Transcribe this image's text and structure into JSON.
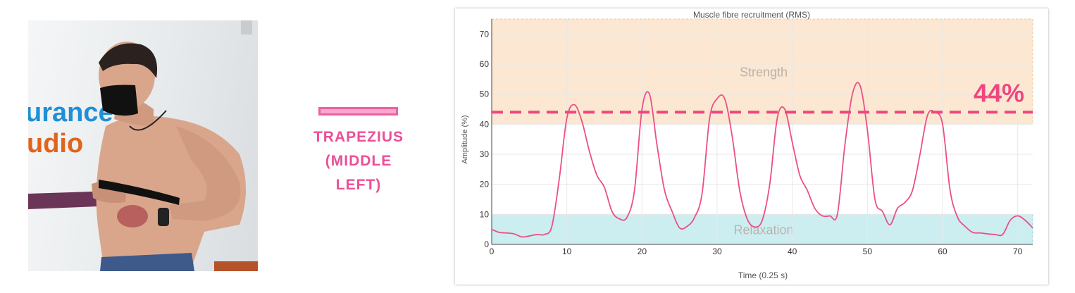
{
  "photo": {
    "logo_line1": "urance",
    "logo_line2": "udio"
  },
  "muscle": {
    "line1": "TRAPEZIUS",
    "line2": "(MIDDLE",
    "line3": "LEFT)"
  },
  "chart_data": {
    "type": "line",
    "title": "Muscle fibre recruitment (RMS)",
    "xlabel": "Time (0.25 s)",
    "ylabel": "Amplitude (%)",
    "xlim": [
      0,
      72
    ],
    "ylim": [
      0,
      75
    ],
    "xticks": [
      0,
      10,
      20,
      30,
      40,
      50,
      60,
      70
    ],
    "yticks": [
      0,
      10,
      20,
      30,
      40,
      50,
      60,
      70
    ],
    "grid": true,
    "bands": [
      {
        "label": "Strength",
        "from": 40,
        "to": 75,
        "color": "#fbe7d2"
      },
      {
        "label": "Relaxation",
        "from": 0,
        "to": 10,
        "color": "#cdeef0"
      }
    ],
    "threshold": {
      "value": 44,
      "label": "44%",
      "color": "#f0457f"
    },
    "series": [
      {
        "color": "#ec4f86",
        "x": [
          0,
          1,
          2,
          3,
          4,
          5,
          6,
          7,
          8,
          9,
          10,
          11,
          12,
          13,
          14,
          15,
          16,
          17,
          18,
          19,
          20,
          21,
          22,
          23,
          24,
          25,
          26,
          27,
          28,
          29,
          30,
          31,
          32,
          33,
          34,
          35,
          36,
          37,
          38,
          39,
          40,
          41,
          42,
          43,
          44,
          45,
          46,
          47,
          48,
          49,
          50,
          51,
          52,
          53,
          54,
          55,
          56,
          57,
          58,
          59,
          60,
          61,
          62,
          63,
          64,
          65,
          66,
          67,
          68,
          69,
          70,
          71,
          72
        ],
        "y": [
          5,
          4,
          3.8,
          3.5,
          2.5,
          2.8,
          3.3,
          3.3,
          6,
          22,
          42,
          46.5,
          41,
          31,
          23,
          19,
          11,
          8.5,
          9,
          18,
          45,
          50,
          33,
          18,
          11,
          5.5,
          6,
          9,
          17,
          42,
          48.5,
          48.5,
          36,
          18,
          8.5,
          5.8,
          8,
          20,
          42,
          45,
          34,
          23,
          18,
          12,
          9.5,
          9.5,
          10,
          33,
          50,
          53,
          38,
          15,
          11,
          6.5,
          12,
          14,
          18,
          30,
          43,
          44,
          40,
          18,
          9,
          6,
          4,
          3.8,
          3.5,
          3.3,
          3.3,
          8,
          9.5,
          8,
          5.5
        ]
      }
    ]
  }
}
